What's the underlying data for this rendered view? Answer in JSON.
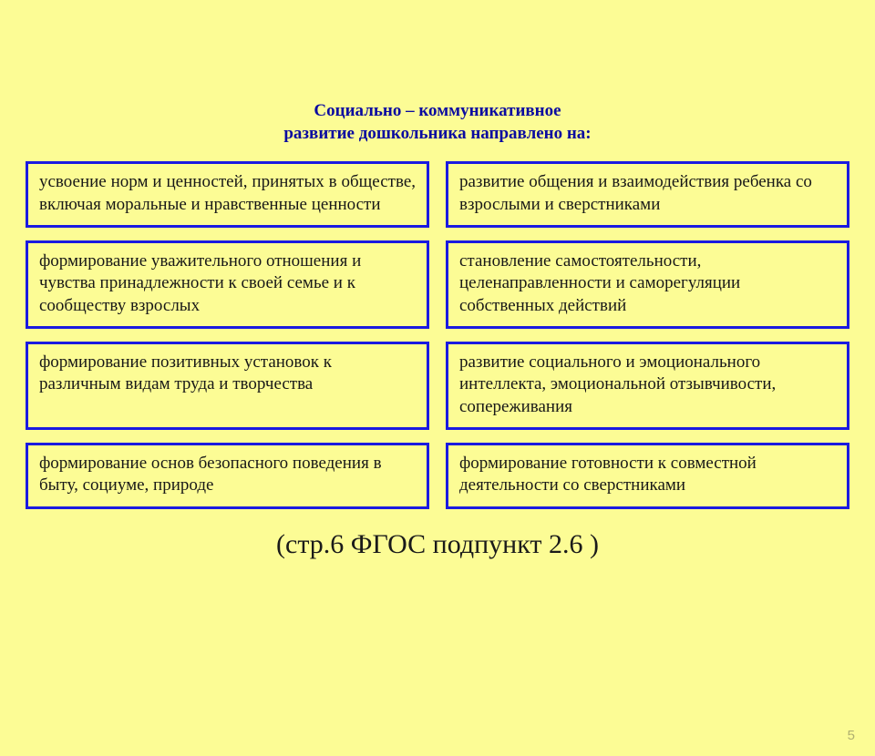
{
  "colors": {
    "background": "#fcfc95",
    "border": "#1a1ae0",
    "title": "#0a0aa0",
    "text": "#181818",
    "pagenum": "#b0b070"
  },
  "title_line1": "Социально – коммуникативное",
  "title_line2": "развитие дошкольника направлено на:",
  "boxes": {
    "r1c1": "усвоение норм и ценностей, принятых в обществе, включая моральные и нравственные ценности",
    "r1c2": "развитие общения и взаимодействия ребенка со взрослыми и сверстниками",
    "r2c1": "формирование уважительного отношения и чувства принадлежности  к своей семье и к сообществу взрослых",
    "r2c2": "становление самостоятельности, целенаправленности и саморегуляции собственных действий",
    "r3c1": "формирование позитивных установок к различным видам труда и творчества",
    "r3c2": "развитие социального и эмоционального интеллекта, эмоциональной отзывчивости, сопереживания",
    "r4c1": "формирование основ безопасного поведения в быту, социуме, природе",
    "r4c2": "формирование готовности к совместной деятельности со сверстниками"
  },
  "footer_ref": "(стр.6 ФГОС подпункт 2.6 )",
  "page_number": "5"
}
